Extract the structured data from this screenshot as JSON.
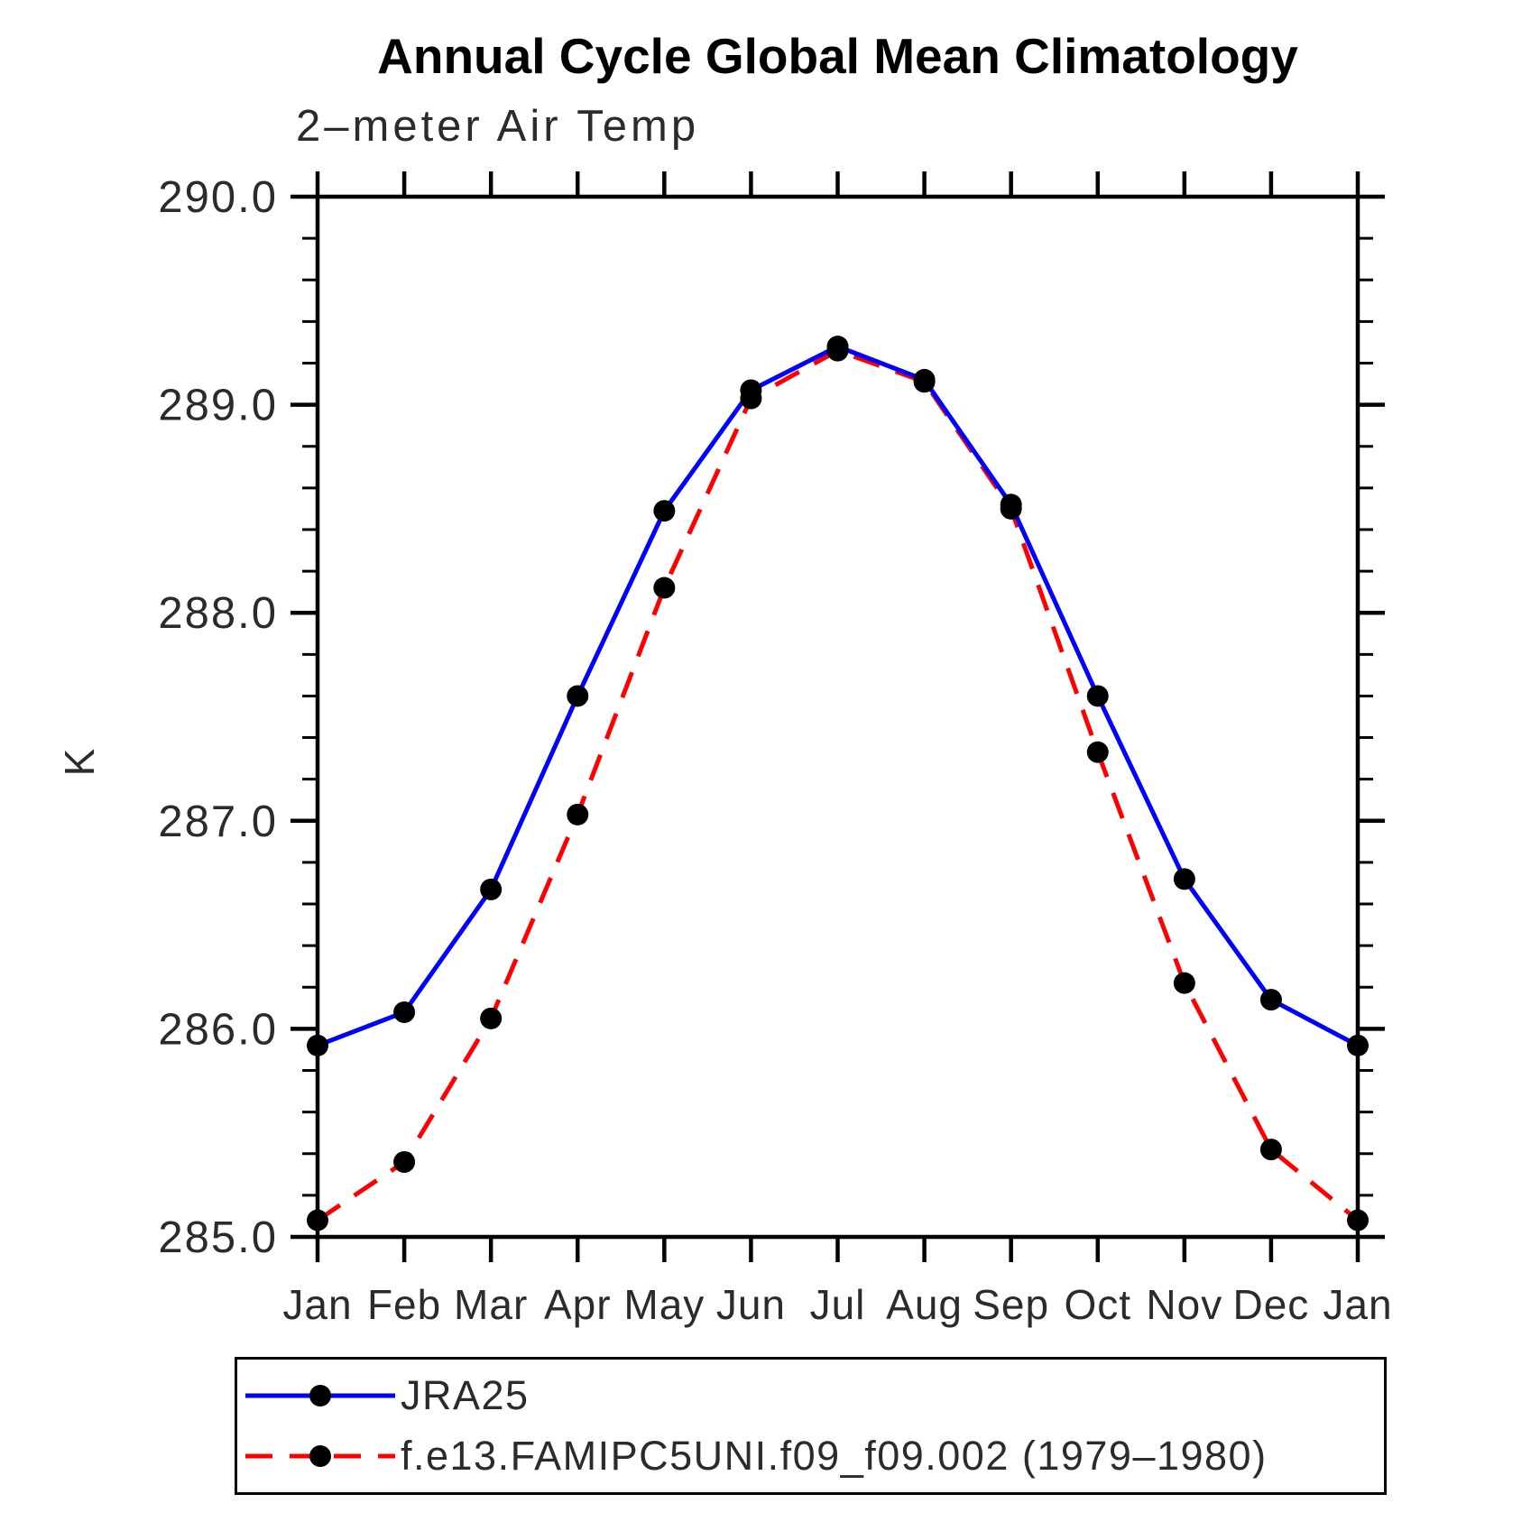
{
  "chart_data": {
    "type": "line",
    "title": "Annual Cycle Global Mean Climatology",
    "subtitle": "2–meter Air Temp",
    "xlabel": "",
    "ylabel": "K",
    "categories": [
      "Jan",
      "Feb",
      "Mar",
      "Apr",
      "May",
      "Jun",
      "Jul",
      "Aug",
      "Sep",
      "Oct",
      "Nov",
      "Dec",
      "Jan"
    ],
    "ylim": [
      285.0,
      290.0
    ],
    "y_major_tick_interval": 1.0,
    "y_minor_tick_interval": 0.2,
    "y_tick_labels": [
      "285.0",
      "286.0",
      "287.0",
      "288.0",
      "289.0",
      "290.0"
    ],
    "grid": false,
    "legend_position": "bottom-left",
    "axis_color": "#000000",
    "text_color": "#2b2b2b",
    "series": [
      {
        "name": "JRA25",
        "color": "#0000ff",
        "line_style": "solid",
        "marker": "circle",
        "marker_color": "#000000",
        "values": [
          285.92,
          286.08,
          286.67,
          287.6,
          288.49,
          289.07,
          289.28,
          289.12,
          288.52,
          287.6,
          286.72,
          286.14,
          285.92
        ]
      },
      {
        "name": "f.e13.FAMIPC5UNI.f09_f09.002 (1979–1980)",
        "color": "#ff0000",
        "line_style": "dashed",
        "marker": "circle",
        "marker_color": "#000000",
        "values": [
          285.08,
          285.36,
          286.05,
          287.03,
          288.12,
          289.03,
          289.26,
          289.11,
          288.5,
          287.33,
          286.22,
          285.42,
          285.08
        ]
      }
    ]
  }
}
